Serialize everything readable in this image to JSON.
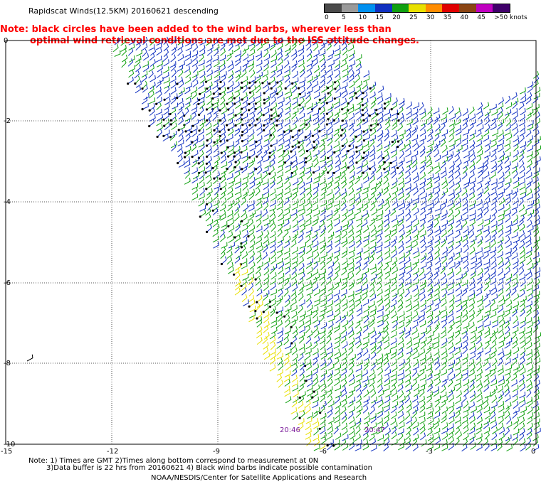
{
  "title": "Rapidscat Winds(12.5KM) 20160621 descending",
  "note": {
    "line1": "Note: black circles have been added to the wind barbs, wherever less than",
    "line2": "optimal wind retrieval conditions are met due to the ISS attitude changes."
  },
  "legend": {
    "labels": [
      "0",
      "5",
      "10",
      "15",
      "20",
      "25",
      "30",
      "35",
      "40",
      "45",
      ">50 knots"
    ],
    "colors": [
      "#4a4a4a",
      "#9a9a9a",
      "#0090f0",
      "#1030c0",
      "#10a010",
      "#e8e000",
      "#ff8c00",
      "#e00000",
      "#8b4513",
      "#c000c0",
      "#40006a"
    ]
  },
  "axes": {
    "y_labels": [
      "0",
      "-2",
      "-4",
      "-6",
      "-8",
      "-10"
    ],
    "x_labels": [
      "-15",
      "-12",
      "-9",
      "-6",
      "-3",
      "0"
    ]
  },
  "pass_times": [
    "20:46",
    "20:47"
  ],
  "footnotes": {
    "line1": "Note: 1) Times are GMT 2)Times along bottom correspond to measurement at 0N",
    "line2": "3)Data buffer is 22 hrs from 20160621 4) Black wind barbs indicate possible contamination"
  },
  "credit": "NOAA/NESDIS/Center for Satellite Applications and Research"
}
